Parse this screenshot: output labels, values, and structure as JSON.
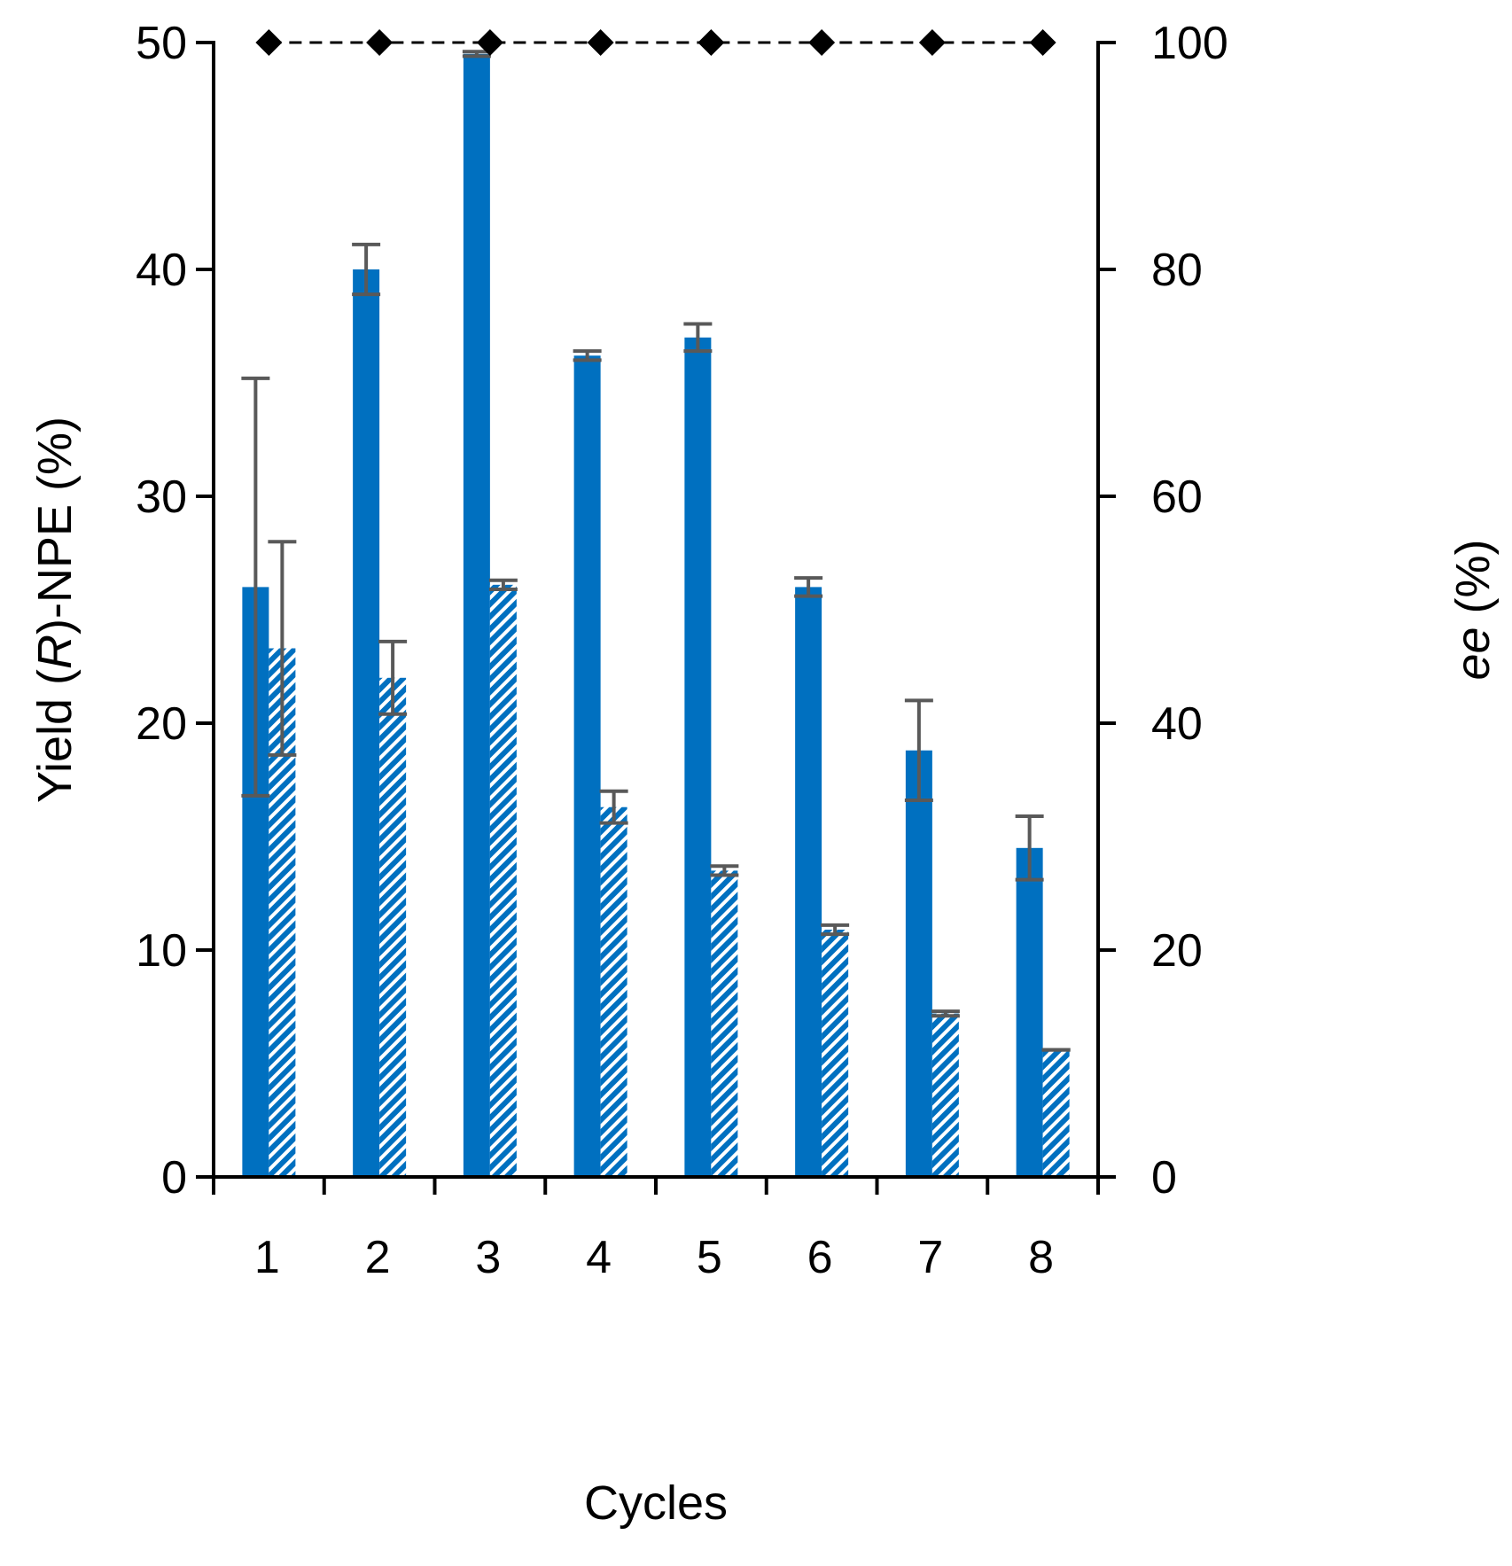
{
  "chart_data": {
    "type": "bar",
    "title": "",
    "xlabel": "Cycles",
    "ylabel": {
      "prefix": "Yield (",
      "italic": "R",
      "suffix": ")-NPE (%)"
    },
    "y2label": {
      "italic": "ee",
      "suffix": " (%)"
    },
    "categories": [
      "1",
      "2",
      "3",
      "4",
      "5",
      "6",
      "7",
      "8"
    ],
    "ylim": [
      0,
      50
    ],
    "y2lim": [
      0,
      100
    ],
    "yticks": [
      "0",
      "10",
      "20",
      "30",
      "40",
      "50"
    ],
    "y2ticks": [
      "0",
      "20",
      "40",
      "60",
      "80",
      "100"
    ],
    "grid": false,
    "legend": "none",
    "series": [
      {
        "name": "yield-solid",
        "axis": "left",
        "style": "solid",
        "color": "#0070C0",
        "values": [
          26.0,
          40.0,
          49.5,
          36.2,
          37.0,
          26.0,
          18.8,
          14.5
        ],
        "errors": [
          9.2,
          1.1,
          0.1,
          0.2,
          0.6,
          0.4,
          2.2,
          1.4
        ]
      },
      {
        "name": "yield-hatched",
        "axis": "left",
        "style": "hatched",
        "color": "#0070C0",
        "values": [
          23.3,
          22.0,
          26.1,
          16.3,
          13.5,
          10.9,
          7.2,
          5.6
        ],
        "errors": [
          4.7,
          1.6,
          0.2,
          0.7,
          0.2,
          0.2,
          0.1,
          0.0
        ]
      },
      {
        "name": "ee",
        "axis": "right",
        "style": "dashed-line-diamond",
        "color": "#000000",
        "values": [
          100,
          100,
          100,
          100,
          100,
          100,
          100,
          100
        ]
      }
    ]
  }
}
